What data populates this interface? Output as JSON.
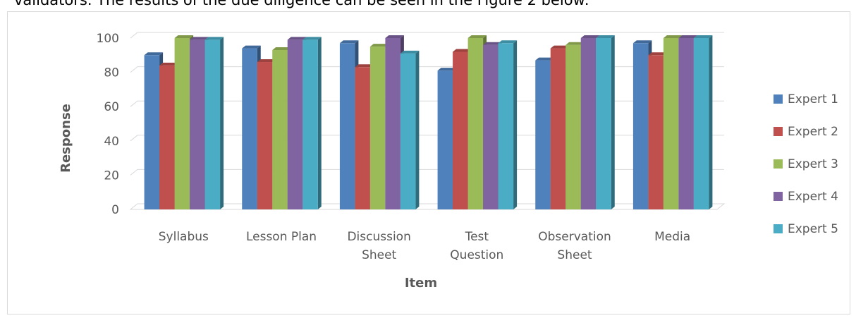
{
  "caption": "validators. The results of the due diligence can be seen in the Figure 2 below:",
  "chart_data": {
    "type": "bar",
    "style": "3d-clustered-column",
    "title": "",
    "xlabel": "Item",
    "ylabel": "Response",
    "ylim": [
      0,
      100
    ],
    "yticks": [
      0,
      20,
      40,
      60,
      80,
      100
    ],
    "grid": true,
    "legend_position": "right",
    "categories": [
      [
        "Syllabus"
      ],
      [
        "Lesson Plan"
      ],
      [
        "Discussion",
        "Sheet"
      ],
      [
        "Test",
        "Question"
      ],
      [
        "Observation",
        "Sheet"
      ],
      [
        "Media"
      ]
    ],
    "series": [
      {
        "name": "Expert 1",
        "color": "#4f81bd",
        "values": [
          90,
          94,
          97,
          81,
          87,
          97
        ]
      },
      {
        "name": "Expert 2",
        "color": "#c0504d",
        "values": [
          84,
          86,
          83,
          92,
          94,
          90
        ]
      },
      {
        "name": "Expert 3",
        "color": "#9bbb59",
        "values": [
          100,
          93,
          95,
          100,
          96,
          100
        ]
      },
      {
        "name": "Expert 4",
        "color": "#8064a2",
        "values": [
          99,
          99,
          100,
          96,
          100,
          100
        ]
      },
      {
        "name": "Expert 5",
        "color": "#4bacc6",
        "values": [
          99,
          99,
          91,
          97,
          100,
          100
        ]
      }
    ]
  }
}
